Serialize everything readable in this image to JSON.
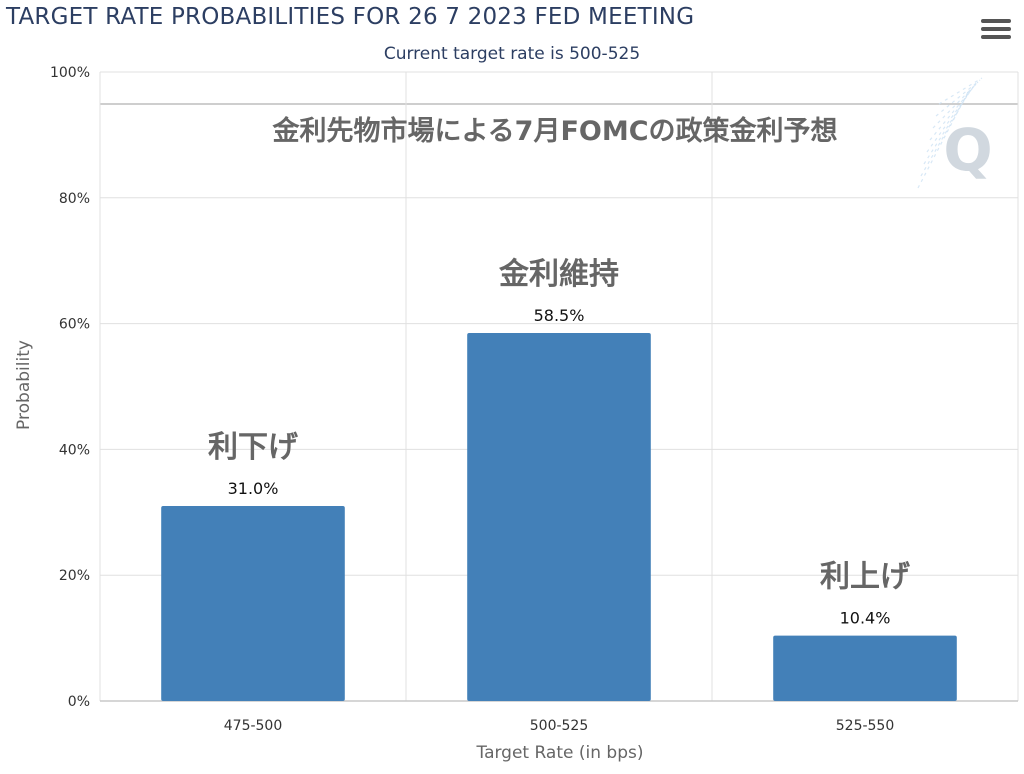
{
  "header": {
    "title": "TARGET RATE PROBABILITIES FOR 26 7 2023 FED MEETING",
    "subtitle": "Current target rate is 500-525"
  },
  "overlay": {
    "heading": "金利先物市場による7月FOMCの政策金利予想",
    "watermark": "Q"
  },
  "chart_data": {
    "type": "bar",
    "title": "TARGET RATE PROBABILITIES FOR 26 7 2023 FED MEETING",
    "subtitle": "Current target rate is 500-525",
    "categories": [
      "475-500",
      "500-525",
      "525-550"
    ],
    "values": [
      31.0,
      58.5,
      10.4
    ],
    "data_labels": [
      "31.0%",
      "58.5%",
      "10.4%"
    ],
    "annotations": [
      "利下げ",
      "金利維持",
      "利上げ"
    ],
    "xlabel": "Target Rate (in bps)",
    "ylabel": "Probability",
    "ylim": [
      0,
      100
    ],
    "yticks": [
      "0%",
      "20%",
      "40%",
      "60%",
      "80%",
      "100%"
    ],
    "grid": true,
    "bar_color": "#4380b8"
  }
}
